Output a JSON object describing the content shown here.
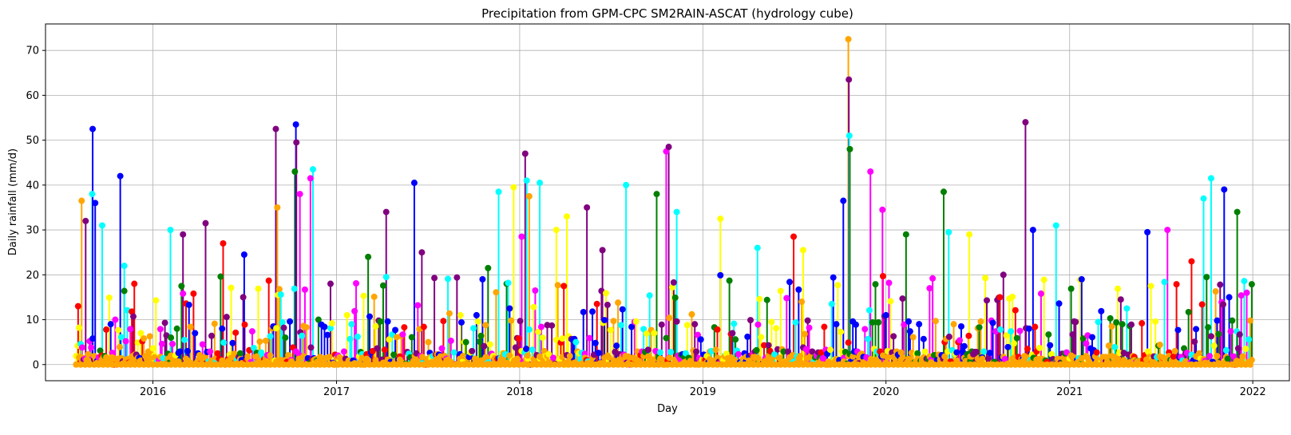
{
  "chart_data": {
    "type": "scatter",
    "title": "Precipitation from GPM-CPC SM2RAIN-ASCAT (hydrology cube)",
    "xlabel": "Day",
    "ylabel": "Daily rainfall (mm/d)",
    "x_ticks": [
      "2016",
      "2017",
      "2018",
      "2019",
      "2020",
      "2021",
      "2022"
    ],
    "y_ticks": [
      0,
      10,
      20,
      30,
      40,
      50,
      60,
      70
    ],
    "xlim": [
      "2015-06-01",
      "2022-03-15"
    ],
    "ylim": [
      -3.6,
      75.9
    ],
    "grid": true,
    "marker_style": "stem with circle marker",
    "colors": [
      "#0000ff",
      "#00ffff",
      "#800080",
      "#ff0000",
      "#008000",
      "#ffff00",
      "#ff00ff",
      "#ffa500"
    ],
    "peaks": [
      {
        "date": "2015-08-05",
        "value": 13,
        "color": "#ff0000"
      },
      {
        "date": "2015-08-12",
        "value": 36.5,
        "color": "#ffa500"
      },
      {
        "date": "2015-08-20",
        "value": 32,
        "color": "#800080"
      },
      {
        "date": "2015-09-02",
        "value": 38,
        "color": "#00ffff"
      },
      {
        "date": "2015-09-03",
        "value": 52.5,
        "color": "#0000ff"
      },
      {
        "date": "2015-09-08",
        "value": 36,
        "color": "#0000ff"
      },
      {
        "date": "2015-09-22",
        "value": 31,
        "color": "#00ffff"
      },
      {
        "date": "2015-10-28",
        "value": 42,
        "color": "#0000ff"
      },
      {
        "date": "2015-11-05",
        "value": 22,
        "color": "#00ffff"
      },
      {
        "date": "2015-11-25",
        "value": 18,
        "color": "#ff0000"
      },
      {
        "date": "2016-02-05",
        "value": 30,
        "color": "#00ffff"
      },
      {
        "date": "2016-03-01",
        "value": 29,
        "color": "#800080"
      },
      {
        "date": "2016-04-15",
        "value": 31.5,
        "color": "#800080"
      },
      {
        "date": "2016-05-20",
        "value": 27,
        "color": "#ff0000"
      },
      {
        "date": "2016-07-01",
        "value": 24.5,
        "color": "#0000ff"
      },
      {
        "date": "2016-09-02",
        "value": 52.5,
        "color": "#800080"
      },
      {
        "date": "2016-09-05",
        "value": 35,
        "color": "#ffa500"
      },
      {
        "date": "2016-10-10",
        "value": 43,
        "color": "#008000"
      },
      {
        "date": "2016-10-12",
        "value": 53.5,
        "color": "#0000ff"
      },
      {
        "date": "2016-10-13",
        "value": 49.5,
        "color": "#800080"
      },
      {
        "date": "2016-10-20",
        "value": 38,
        "color": "#ff00ff"
      },
      {
        "date": "2016-11-10",
        "value": 41.5,
        "color": "#ff00ff"
      },
      {
        "date": "2016-11-15",
        "value": 43.5,
        "color": "#00ffff"
      },
      {
        "date": "2016-12-20",
        "value": 18,
        "color": "#800080"
      },
      {
        "date": "2017-03-05",
        "value": 24,
        "color": "#008000"
      },
      {
        "date": "2017-04-10",
        "value": 34,
        "color": "#800080"
      },
      {
        "date": "2017-06-05",
        "value": 40.5,
        "color": "#0000ff"
      },
      {
        "date": "2017-06-20",
        "value": 25,
        "color": "#800080"
      },
      {
        "date": "2017-09-05",
        "value": 11,
        "color": "#ffff00"
      },
      {
        "date": "2017-10-30",
        "value": 21.5,
        "color": "#008000"
      },
      {
        "date": "2017-11-20",
        "value": 38.5,
        "color": "#00ffff"
      },
      {
        "date": "2017-12-20",
        "value": 39.5,
        "color": "#ffff00"
      },
      {
        "date": "2018-01-05",
        "value": 28.5,
        "color": "#ff00ff"
      },
      {
        "date": "2018-01-12",
        "value": 47,
        "color": "#800080"
      },
      {
        "date": "2018-01-15",
        "value": 41,
        "color": "#00ffff"
      },
      {
        "date": "2018-01-20",
        "value": 37.5,
        "color": "#ffa500"
      },
      {
        "date": "2018-02-10",
        "value": 40.5,
        "color": "#00ffff"
      },
      {
        "date": "2018-03-15",
        "value": 30,
        "color": "#ffff00"
      },
      {
        "date": "2018-04-05",
        "value": 33,
        "color": "#ffff00"
      },
      {
        "date": "2018-05-15",
        "value": 35,
        "color": "#800080"
      },
      {
        "date": "2018-06-15",
        "value": 25.5,
        "color": "#800080"
      },
      {
        "date": "2018-08-01",
        "value": 40,
        "color": "#00ffff"
      },
      {
        "date": "2018-10-01",
        "value": 38,
        "color": "#008000"
      },
      {
        "date": "2018-10-20",
        "value": 47.5,
        "color": "#ff00ff"
      },
      {
        "date": "2018-10-25",
        "value": 48.5,
        "color": "#800080"
      },
      {
        "date": "2018-11-10",
        "value": 34,
        "color": "#00ffff"
      },
      {
        "date": "2019-02-05",
        "value": 32.5,
        "color": "#ffff00"
      },
      {
        "date": "2019-04-20",
        "value": 26,
        "color": "#00ffff"
      },
      {
        "date": "2019-07-01",
        "value": 28.5,
        "color": "#ff0000"
      },
      {
        "date": "2019-07-20",
        "value": 25.5,
        "color": "#ffff00"
      },
      {
        "date": "2019-10-08",
        "value": 36.5,
        "color": "#0000ff"
      },
      {
        "date": "2019-10-18",
        "value": 72.5,
        "color": "#ffa500"
      },
      {
        "date": "2019-10-19",
        "value": 63.5,
        "color": "#800080"
      },
      {
        "date": "2019-10-20",
        "value": 51,
        "color": "#00ffff"
      },
      {
        "date": "2019-10-21",
        "value": 48,
        "color": "#008000"
      },
      {
        "date": "2019-12-01",
        "value": 43,
        "color": "#ff00ff"
      },
      {
        "date": "2019-12-25",
        "value": 34.5,
        "color": "#ff00ff"
      },
      {
        "date": "2020-02-10",
        "value": 29,
        "color": "#008000"
      },
      {
        "date": "2020-04-25",
        "value": 38.5,
        "color": "#008000"
      },
      {
        "date": "2020-05-05",
        "value": 29.5,
        "color": "#00ffff"
      },
      {
        "date": "2020-06-15",
        "value": 29,
        "color": "#ffff00"
      },
      {
        "date": "2020-08-15",
        "value": 15,
        "color": "#ff0000"
      },
      {
        "date": "2020-10-05",
        "value": 54,
        "color": "#800080"
      },
      {
        "date": "2020-10-20",
        "value": 30,
        "color": "#0000ff"
      },
      {
        "date": "2020-12-05",
        "value": 31,
        "color": "#00ffff"
      },
      {
        "date": "2021-01-25",
        "value": 19,
        "color": "#0000ff"
      },
      {
        "date": "2021-06-05",
        "value": 29.5,
        "color": "#0000ff"
      },
      {
        "date": "2021-07-15",
        "value": 30,
        "color": "#ff00ff"
      },
      {
        "date": "2021-09-01",
        "value": 23,
        "color": "#ff0000"
      },
      {
        "date": "2021-09-25",
        "value": 37,
        "color": "#00ffff"
      },
      {
        "date": "2021-10-10",
        "value": 41.5,
        "color": "#00ffff"
      },
      {
        "date": "2021-11-05",
        "value": 39,
        "color": "#0000ff"
      },
      {
        "date": "2021-12-01",
        "value": 34,
        "color": "#008000"
      },
      {
        "date": "2021-12-20",
        "value": 16,
        "color": "#ff00ff"
      }
    ]
  }
}
